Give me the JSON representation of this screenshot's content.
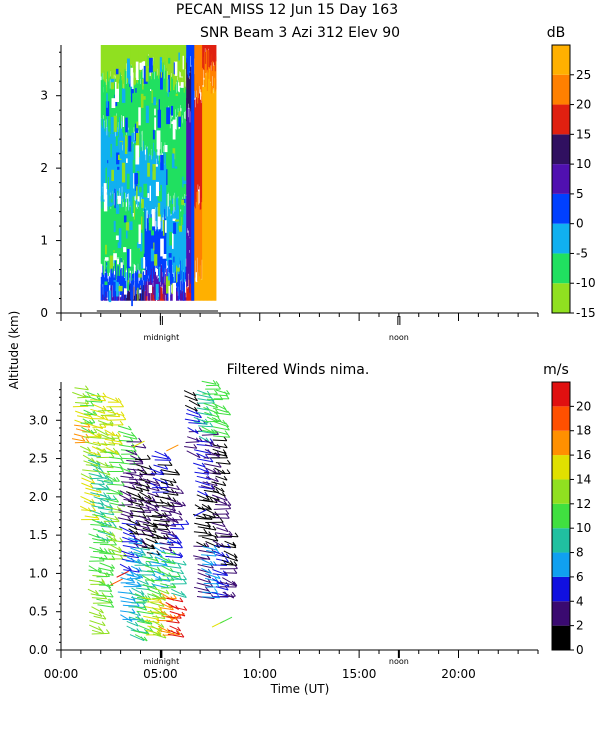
{
  "header": {
    "line1": "PECAN_MISS  12 Jun 15 Day 163",
    "line2": "SNR Beam 3 Azi 312 Elev 90"
  },
  "shared": {
    "ylabel": "Altitude (km)",
    "xlabel": "Time (UT)",
    "midnight_label": "midnight",
    "noon_label": "noon"
  },
  "chart_data": [
    {
      "type": "heatmap",
      "title": "SNR Beam 3 Azi 312 Elev 90",
      "x_domain_hours": [
        0,
        24
      ],
      "ylim": [
        0,
        3.7
      ],
      "yticks": [
        "0",
        "1",
        "2",
        "3"
      ],
      "colorbar": {
        "unit": "dB",
        "range": [
          -15,
          30
        ],
        "ticks": [
          "-15",
          "-10",
          "-5",
          "0",
          "5",
          "10",
          "15",
          "20",
          "25"
        ],
        "colors": [
          "#90e020",
          "#20e060",
          "#10b0f0",
          "#0040ff",
          "#5010b0",
          "#301060",
          "#e02010",
          "#ff8000",
          "#ffb000"
        ]
      },
      "data_extent_hours": [
        2.0,
        7.8
      ],
      "data_extent_km": [
        0.17,
        3.7
      ],
      "columns": [
        {
          "from": 2.0,
          "to": 3.2,
          "profile": [
            [
              0.17,
              "#5010b0"
            ],
            [
              0.25,
              "#0040ff"
            ],
            [
              0.6,
              "#20e060"
            ],
            [
              1.6,
              "#10b0f0"
            ],
            [
              2.6,
              "#20e060"
            ],
            [
              3.2,
              "#90e020"
            ]
          ]
        },
        {
          "from": 3.2,
          "to": 4.2,
          "profile": [
            [
              0.17,
              "#301060"
            ],
            [
              0.3,
              "#0040ff"
            ],
            [
              0.55,
              "#20e060"
            ],
            [
              1.5,
              "#10b0f0"
            ],
            [
              2.4,
              "#20e060"
            ],
            [
              3.3,
              "#90e020"
            ]
          ]
        },
        {
          "from": 4.2,
          "to": 5.3,
          "profile": [
            [
              0.17,
              "#e02010"
            ],
            [
              0.3,
              "#5010b0"
            ],
            [
              0.55,
              "#0040ff"
            ],
            [
              1.3,
              "#10b0f0"
            ],
            [
              2.2,
              "#20e060"
            ],
            [
              3.4,
              "#90e020"
            ]
          ]
        },
        {
          "from": 5.3,
          "to": 6.3,
          "profile": [
            [
              0.17,
              "#5010b0"
            ],
            [
              0.3,
              "#0040ff"
            ],
            [
              0.6,
              "#10b0f0"
            ],
            [
              1.5,
              "#20e060"
            ],
            [
              2.7,
              "#20e060"
            ],
            [
              3.2,
              "#90e020"
            ]
          ]
        },
        {
          "from": 6.3,
          "to": 6.7,
          "profile": [
            [
              0.17,
              "#e02010"
            ],
            [
              0.4,
              "#5010b0"
            ],
            [
              1.0,
              "#5010b0"
            ],
            [
              2.8,
              "#301060"
            ],
            [
              3.4,
              "#0040ff"
            ]
          ]
        },
        {
          "from": 6.7,
          "to": 7.1,
          "profile": [
            [
              0.17,
              "#ffb000"
            ],
            [
              0.6,
              "#ff8000"
            ],
            [
              1.6,
              "#e02010"
            ],
            [
              3.0,
              "#ff8000"
            ]
          ]
        },
        {
          "from": 7.1,
          "to": 7.8,
          "profile": [
            [
              0.17,
              "#ffb000"
            ],
            [
              3.2,
              "#ff8000"
            ],
            [
              3.5,
              "#e02010"
            ]
          ]
        }
      ]
    },
    {
      "type": "scatter",
      "title": "Filtered Winds nima.",
      "x_domain_hours": [
        0,
        24
      ],
      "xticks": [
        "00:00",
        "05:00",
        "10:00",
        "15:00",
        "20:00"
      ],
      "ylim": [
        0,
        3.5
      ],
      "yticks": [
        "0.0",
        "0.5",
        "1.0",
        "1.5",
        "2.0",
        "2.5",
        "3.0"
      ],
      "colorbar": {
        "unit": "m/s",
        "range": [
          0,
          22
        ],
        "ticks": [
          "0",
          "2",
          "4",
          "6",
          "8",
          "10",
          "12",
          "14",
          "16",
          "18",
          "20"
        ],
        "colors": [
          "#000000",
          "#3a0a70",
          "#1010e0",
          "#10a0f0",
          "#20c0a0",
          "#40e040",
          "#90e020",
          "#e0e000",
          "#ff9000",
          "#ff5000",
          "#e01010"
        ]
      },
      "barb_columns": [
        {
          "t": 0.7,
          "z": [
            2.7,
            3.4
          ],
          "colors": [
            "#ff9000",
            "#e0e000",
            "#90e020"
          ]
        },
        {
          "t": 1.1,
          "z": [
            1.7,
            3.4
          ],
          "colors": [
            "#e0e000",
            "#90e020",
            "#40e040"
          ]
        },
        {
          "t": 1.5,
          "z": [
            0.2,
            3.3
          ],
          "colors": [
            "#90e020",
            "#40e040",
            "#20c0a0",
            "#e0e000"
          ]
        },
        {
          "t": 1.9,
          "z": [
            0.6,
            3.1
          ],
          "colors": [
            "#40e040",
            "#20c0a0",
            "#90e020"
          ]
        },
        {
          "t": 2.3,
          "z": [
            1.2,
            3.3
          ],
          "colors": [
            "#90e020",
            "#40e040",
            "#e0e000"
          ]
        },
        {
          "t": 3.0,
          "z": [
            0.4,
            2.9
          ],
          "colors": [
            "#10a0f0",
            "#1010e0",
            "#3a0a70",
            "#40e040"
          ]
        },
        {
          "t": 3.4,
          "z": [
            0.2,
            2.7
          ],
          "colors": [
            "#20c0a0",
            "#10a0f0",
            "#000000",
            "#3a0a70"
          ]
        },
        {
          "t": 3.8,
          "z": [
            0.2,
            2.5
          ],
          "colors": [
            "#40e040",
            "#20c0a0",
            "#3a0a70",
            "#000000"
          ]
        },
        {
          "t": 4.2,
          "z": [
            0.2,
            2.3
          ],
          "colors": [
            "#e0e000",
            "#40e040",
            "#000000",
            "#3a0a70"
          ]
        },
        {
          "t": 4.6,
          "z": [
            0.2,
            2.6
          ],
          "colors": [
            "#90e020",
            "#10a0f0",
            "#000000",
            "#1010e0"
          ]
        },
        {
          "t": 5.0,
          "z": [
            0.2,
            2.4
          ],
          "colors": [
            "#ff9000",
            "#40e040",
            "#3a0a70",
            "#000000"
          ]
        },
        {
          "t": 5.4,
          "z": [
            0.2,
            2.1
          ],
          "colors": [
            "#e01010",
            "#20c0a0",
            "#1010e0",
            "#3a0a70"
          ]
        },
        {
          "t": 6.3,
          "z": [
            2.6,
            3.4
          ],
          "colors": [
            "#3a0a70",
            "#1010e0",
            "#000000"
          ]
        },
        {
          "t": 6.8,
          "z": [
            0.7,
            3.4
          ],
          "colors": [
            "#3a0a70",
            "#000000",
            "#1010e0",
            "#20c0a0"
          ]
        },
        {
          "t": 7.2,
          "z": [
            0.7,
            3.5
          ],
          "colors": [
            "#10a0f0",
            "#000000",
            "#3a0a70",
            "#40e040"
          ]
        },
        {
          "t": 7.7,
          "z": [
            0.7,
            3.4
          ],
          "colors": [
            "#1010e0",
            "#3a0a70",
            "#000000",
            "#40e040"
          ]
        },
        {
          "t": 8.1,
          "z": [
            0.7,
            1.5
          ],
          "colors": [
            "#3a0a70",
            "#000000"
          ]
        }
      ]
    }
  ]
}
